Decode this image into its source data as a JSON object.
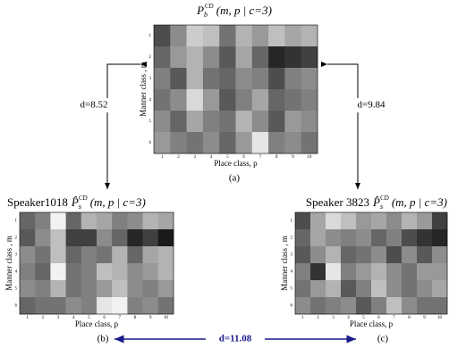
{
  "figure": {
    "panels": [
      {
        "label": "(a)",
        "title": {
          "symbol": "P",
          "sub": "b",
          "sup": "CD",
          "args": "(m, p | c=3)"
        },
        "ylabel": "Manner class , m",
        "xlabel": "Place class, p",
        "rows": [
          1,
          2,
          3,
          4,
          5,
          6
        ],
        "cols": [
          1,
          2,
          3,
          4,
          5,
          6,
          7,
          8,
          9,
          10
        ],
        "cells": [
          [
            30,
            55,
            80,
            75,
            45,
            70,
            60,
            75,
            65,
            70
          ],
          [
            40,
            60,
            70,
            55,
            35,
            65,
            40,
            15,
            20,
            25
          ],
          [
            50,
            35,
            70,
            45,
            40,
            55,
            50,
            30,
            50,
            55
          ],
          [
            45,
            55,
            85,
            60,
            35,
            50,
            65,
            40,
            45,
            50
          ],
          [
            55,
            40,
            65,
            50,
            45,
            70,
            55,
            35,
            60,
            55
          ],
          [
            60,
            50,
            45,
            55,
            40,
            60,
            90,
            50,
            55,
            45
          ]
        ]
      },
      {
        "label": "(b)",
        "title": {
          "prefix": "Speaker1018",
          "symbol": "P̂",
          "sub": "s",
          "sup": "CD",
          "args": "(m, p | c=3)"
        },
        "ylabel": "Manner class , m",
        "xlabel": "Place class, p",
        "rows": [
          1,
          2,
          3,
          4,
          5,
          6
        ],
        "cols": [
          1,
          2,
          3,
          4,
          5,
          6,
          7,
          8,
          9,
          10
        ],
        "cells": [
          [
            40,
            50,
            95,
            40,
            70,
            65,
            50,
            55,
            70,
            65
          ],
          [
            35,
            55,
            75,
            25,
            25,
            55,
            40,
            15,
            25,
            10
          ],
          [
            55,
            45,
            75,
            40,
            50,
            45,
            70,
            40,
            65,
            70
          ],
          [
            50,
            40,
            95,
            45,
            50,
            75,
            70,
            55,
            60,
            70
          ],
          [
            55,
            50,
            70,
            45,
            50,
            60,
            75,
            55,
            50,
            60
          ],
          [
            40,
            45,
            45,
            55,
            50,
            90,
            95,
            50,
            55,
            45
          ]
        ]
      },
      {
        "label": "(c)",
        "title": {
          "prefix": "Speaker 3823",
          "symbol": "P̂",
          "sub": "s",
          "sup": "CD",
          "args": "(m, p | c=3)"
        },
        "ylabel": "Manner class , m",
        "xlabel": "Place class, p",
        "rows": [
          1,
          2,
          3,
          4,
          5,
          6
        ],
        "cols": [
          1,
          2,
          3,
          4,
          5,
          6,
          7,
          8,
          9,
          10
        ],
        "cells": [
          [
            30,
            65,
            85,
            75,
            60,
            65,
            55,
            70,
            60,
            25
          ],
          [
            40,
            65,
            55,
            50,
            55,
            40,
            50,
            30,
            20,
            15
          ],
          [
            35,
            55,
            70,
            40,
            45,
            55,
            30,
            55,
            35,
            55
          ],
          [
            50,
            20,
            90,
            50,
            60,
            70,
            55,
            45,
            60,
            60
          ],
          [
            45,
            60,
            70,
            35,
            50,
            75,
            55,
            45,
            55,
            65
          ],
          [
            55,
            45,
            50,
            55,
            35,
            50,
            75,
            55,
            45,
            45
          ]
        ]
      }
    ],
    "distances": [
      "d=8.52",
      "d=9.84",
      "d=11.08"
    ]
  }
}
